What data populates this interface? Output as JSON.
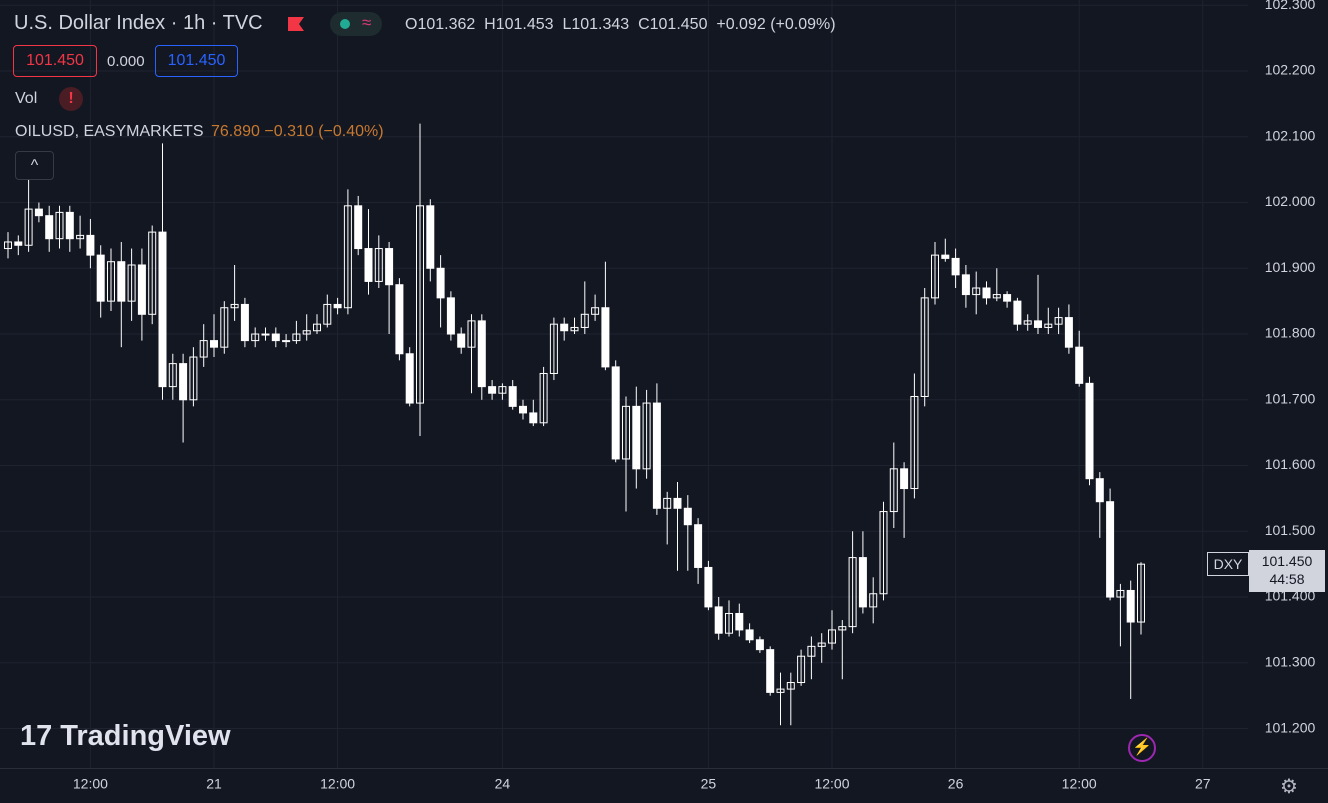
{
  "toolbar": {
    "title": "U.S. Dollar Index · 1h · TVC",
    "ohlc": [
      "O101.362",
      "H101.453",
      "L101.343",
      "C101.450",
      "+0.092 (+0.09%)"
    ],
    "sell": "101.450",
    "spread": "0.000",
    "buy": "101.450",
    "vol": "Vol",
    "compare_symbol": "OILUSD, EASYMARKETS",
    "compare_values": "76.890 −0.310 (−0.40%)",
    "price_symbol": "DXY",
    "last_price": "101.450",
    "countdown": "44:58",
    "watermark": "TradingView"
  },
  "chart_data": {
    "type": "candlestick",
    "color": "#ffffff",
    "grid": true,
    "categories": [
      null,
      null,
      null,
      null,
      null,
      null,
      null,
      null,
      "12:00",
      null,
      null,
      null,
      null,
      null,
      null,
      null,
      null,
      null,
      null,
      null,
      "21",
      null,
      null,
      null,
      null,
      null,
      null,
      null,
      null,
      null,
      null,
      null,
      "12:00",
      null,
      null,
      null,
      null,
      null,
      null,
      null,
      null,
      null,
      null,
      null,
      null,
      null,
      null,
      null,
      "24",
      null,
      null,
      null,
      null,
      null,
      null,
      null,
      null,
      null,
      null,
      null,
      null,
      null,
      null,
      null,
      null,
      null,
      null,
      null,
      "25",
      null,
      null,
      null,
      null,
      null,
      null,
      null,
      null,
      null,
      null,
      null,
      "12:00",
      null,
      null,
      null,
      null,
      null,
      null,
      null,
      null,
      null,
      null,
      null,
      "26",
      null,
      null,
      null,
      null,
      null,
      null,
      null,
      null,
      null,
      null,
      null,
      "12:00",
      null,
      null,
      null,
      null,
      null,
      null,
      null,
      null,
      null,
      null,
      null,
      "27",
      null
    ],
    "open": [
      101.93,
      101.94,
      101.935,
      101.99,
      101.98,
      101.945,
      101.985,
      101.945,
      101.95,
      101.92,
      101.85,
      101.91,
      101.85,
      101.905,
      101.83,
      101.955,
      101.72,
      101.755,
      101.7,
      101.765,
      101.79,
      101.78,
      101.84,
      101.845,
      101.79,
      101.8,
      101.8,
      101.79,
      101.79,
      101.8,
      101.805,
      101.815,
      101.845,
      101.84,
      101.995,
      101.93,
      101.88,
      101.93,
      101.875,
      101.77,
      101.695,
      101.995,
      101.9,
      101.855,
      101.8,
      101.78,
      101.82,
      101.72,
      101.71,
      101.72,
      101.69,
      101.68,
      101.665,
      101.74,
      101.815,
      101.805,
      101.81,
      101.83,
      101.84,
      101.75,
      101.61,
      101.69,
      101.595,
      101.695,
      101.535,
      101.55,
      101.535,
      101.51,
      101.445,
      101.385,
      101.345,
      101.375,
      101.35,
      101.335,
      101.32,
      101.255,
      101.26,
      101.27,
      101.31,
      101.325,
      101.33,
      101.35,
      101.355,
      101.46,
      101.385,
      101.405,
      101.53,
      101.595,
      101.565,
      101.705,
      101.855,
      101.92,
      101.915,
      101.89,
      101.86,
      101.87,
      101.855,
      101.86,
      101.85,
      101.815,
      101.82,
      101.81,
      101.815,
      101.825,
      101.78,
      101.725,
      101.58,
      101.545,
      101.4,
      101.41,
      101.362,
      null,
      null,
      null,
      null,
      null,
      null,
      null
    ],
    "high": [
      101.955,
      101.95,
      102.035,
      102.0,
      101.995,
      101.995,
      101.995,
      101.98,
      101.975,
      101.935,
      101.93,
      101.94,
      101.93,
      101.93,
      101.965,
      102.09,
      101.77,
      101.77,
      101.78,
      101.815,
      101.83,
      101.85,
      101.905,
      101.855,
      101.81,
      101.81,
      101.81,
      101.8,
      101.82,
      101.83,
      101.83,
      101.86,
      101.855,
      102.02,
      102.01,
      101.99,
      101.95,
      101.94,
      101.885,
      101.78,
      102.12,
      102.005,
      101.92,
      101.865,
      101.81,
      101.83,
      101.83,
      101.73,
      101.725,
      101.73,
      101.7,
      101.7,
      101.75,
      101.825,
      101.825,
      101.825,
      101.88,
      101.86,
      101.91,
      101.76,
      101.705,
      101.72,
      101.715,
      101.725,
      101.56,
      101.575,
      101.555,
      101.52,
      101.455,
      101.4,
      101.395,
      101.39,
      101.36,
      101.34,
      101.325,
      101.285,
      101.285,
      101.32,
      101.34,
      101.345,
      101.38,
      101.365,
      101.5,
      101.5,
      101.43,
      101.545,
      101.635,
      101.605,
      101.74,
      101.87,
      101.94,
      101.945,
      101.93,
      101.905,
      101.895,
      101.88,
      101.9,
      101.865,
      101.855,
      101.83,
      101.89,
      101.84,
      101.84,
      101.845,
      101.805,
      101.735,
      101.59,
      101.565,
      101.42,
      101.425,
      101.453,
      null,
      null,
      null,
      null,
      null,
      null,
      null
    ],
    "low": [
      101.915,
      101.92,
      101.925,
      101.97,
      101.925,
      101.93,
      101.925,
      101.93,
      101.9,
      101.825,
      101.835,
      101.78,
      101.82,
      101.79,
      101.815,
      101.7,
      101.7,
      101.635,
      101.69,
      101.75,
      101.765,
      101.77,
      101.82,
      101.78,
      101.78,
      101.79,
      101.78,
      101.78,
      101.785,
      101.79,
      101.8,
      101.81,
      101.83,
      101.83,
      101.92,
      101.86,
      101.87,
      101.8,
      101.76,
      101.69,
      101.645,
      101.88,
      101.81,
      101.79,
      101.77,
      101.71,
      101.7,
      101.7,
      101.7,
      101.685,
      101.67,
      101.66,
      101.66,
      101.73,
      101.79,
      101.8,
      101.8,
      101.82,
      101.745,
      101.605,
      101.53,
      101.565,
      101.58,
      101.525,
      101.48,
      101.44,
      101.44,
      101.42,
      101.38,
      101.335,
      101.34,
      101.34,
      101.33,
      101.315,
      101.25,
      101.205,
      101.205,
      101.265,
      101.275,
      101.3,
      101.32,
      101.275,
      101.345,
      101.375,
      101.36,
      101.395,
      101.505,
      101.49,
      101.55,
      101.69,
      101.845,
      101.91,
      101.87,
      101.84,
      101.83,
      101.845,
      101.85,
      101.84,
      101.805,
      101.805,
      101.8,
      101.8,
      101.8,
      101.77,
      101.72,
      101.57,
      101.49,
      101.395,
      101.325,
      101.245,
      101.343,
      null,
      null,
      null,
      null,
      null,
      null,
      null
    ],
    "close": [
      101.94,
      101.935,
      101.99,
      101.98,
      101.945,
      101.985,
      101.945,
      101.95,
      101.92,
      101.85,
      101.91,
      101.85,
      101.905,
      101.83,
      101.955,
      101.72,
      101.755,
      101.7,
      101.765,
      101.79,
      101.78,
      101.84,
      101.845,
      101.79,
      101.8,
      101.8,
      101.79,
      101.79,
      101.8,
      101.805,
      101.815,
      101.845,
      101.84,
      101.995,
      101.93,
      101.88,
      101.93,
      101.875,
      101.77,
      101.695,
      101.995,
      101.9,
      101.855,
      101.8,
      101.78,
      101.82,
      101.72,
      101.71,
      101.72,
      101.69,
      101.68,
      101.665,
      101.74,
      101.815,
      101.805,
      101.81,
      101.83,
      101.84,
      101.75,
      101.61,
      101.69,
      101.595,
      101.695,
      101.535,
      101.55,
      101.535,
      101.51,
      101.445,
      101.385,
      101.345,
      101.375,
      101.35,
      101.335,
      101.32,
      101.255,
      101.26,
      101.27,
      101.31,
      101.325,
      101.33,
      101.35,
      101.355,
      101.46,
      101.385,
      101.405,
      101.53,
      101.595,
      101.565,
      101.705,
      101.855,
      101.92,
      101.915,
      101.89,
      101.86,
      101.87,
      101.855,
      101.86,
      101.85,
      101.815,
      101.82,
      101.81,
      101.815,
      101.825,
      101.78,
      101.725,
      101.58,
      101.545,
      101.4,
      101.41,
      101.362,
      101.45,
      null,
      null,
      null,
      null,
      null,
      null,
      null
    ],
    "ylim": [
      101.14,
      102.308
    ],
    "yticks": [
      {
        "value": 101.2,
        "label": "101.200"
      },
      {
        "value": 101.3,
        "label": "101.300"
      },
      {
        "value": 101.4,
        "label": "101.400"
      },
      {
        "value": 101.5,
        "label": "101.500"
      },
      {
        "value": 101.6,
        "label": "101.600"
      },
      {
        "value": 101.7,
        "label": "101.700"
      },
      {
        "value": 101.8,
        "label": "101.800"
      },
      {
        "value": 101.9,
        "label": "101.900"
      },
      {
        "value": 102.0,
        "label": "102.000"
      },
      {
        "value": 102.1,
        "label": "102.100"
      },
      {
        "value": 102.2,
        "label": "102.200"
      },
      {
        "value": 102.3,
        "label": "102.300"
      }
    ]
  }
}
